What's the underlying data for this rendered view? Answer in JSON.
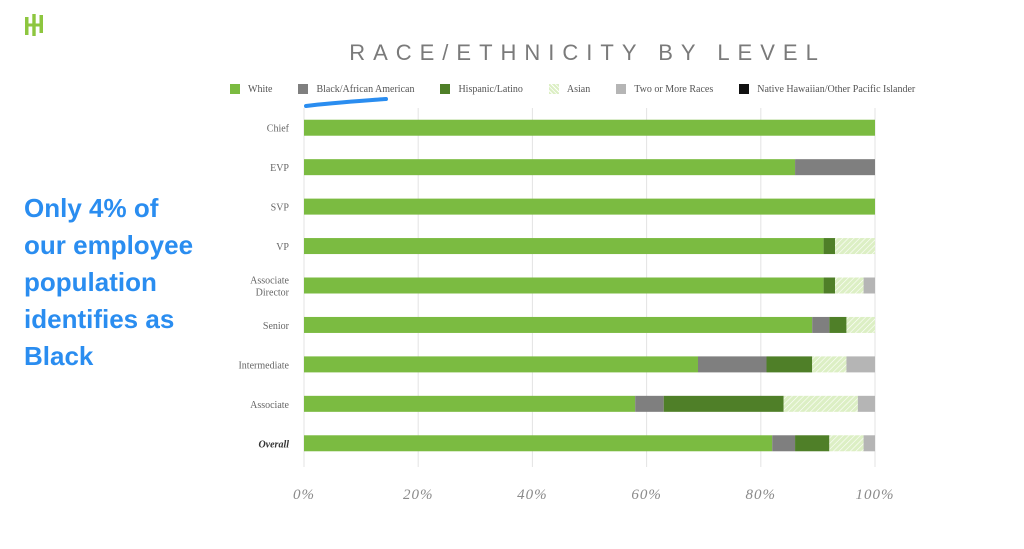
{
  "logo": {
    "icon": "hh-logo-icon",
    "color": "#8dc63f"
  },
  "annotation": {
    "lines": [
      "Only 4% of",
      "our employee",
      "population",
      "identifies as",
      "Black"
    ],
    "color": "#2a8df0"
  },
  "underline_color": "#2a8df0",
  "chart_data": {
    "type": "bar",
    "orientation": "horizontal",
    "stacked": true,
    "title": "RACE/ETHNICITY BY LEVEL",
    "xlabel": "",
    "ylabel": "",
    "xlim": [
      0,
      100
    ],
    "xticks": [
      0,
      20,
      40,
      60,
      80,
      100
    ],
    "xtick_labels": [
      "0%",
      "20%",
      "40%",
      "60%",
      "80%",
      "100%"
    ],
    "grid": true,
    "legend_position": "top",
    "categories": [
      [
        "Chief"
      ],
      [
        "EVP"
      ],
      [
        "SVP"
      ],
      [
        "VP"
      ],
      [
        "Associate",
        "Director"
      ],
      [
        "Senior"
      ],
      [
        "Intermediate"
      ],
      [
        "Associate"
      ],
      [
        "Overall"
      ]
    ],
    "emphasized_category": "Overall",
    "series": [
      {
        "name": "White",
        "color": "#7bbb41",
        "pattern": "solid",
        "values": [
          100,
          86,
          100,
          91,
          91,
          89,
          69,
          58,
          82
        ]
      },
      {
        "name": "Black/African American",
        "color": "#7f7f7f",
        "pattern": "solid",
        "values": [
          0,
          14,
          0,
          0,
          0,
          3,
          12,
          5,
          4
        ]
      },
      {
        "name": "Hispanic/Latino",
        "color": "#4f7f28",
        "pattern": "solid",
        "values": [
          0,
          0,
          0,
          2,
          2,
          3,
          8,
          21,
          6
        ]
      },
      {
        "name": "Asian",
        "color": "#dcefc4",
        "pattern": "hatch",
        "values": [
          0,
          0,
          0,
          7,
          5,
          5,
          6,
          13,
          6
        ]
      },
      {
        "name": "Two or More Races",
        "color": "#b5b5b5",
        "pattern": "solid",
        "values": [
          0,
          0,
          0,
          0,
          2,
          0,
          5,
          3,
          2
        ]
      },
      {
        "name": "Native Hawaiian/Other Pacific Islander",
        "color": "#111111",
        "pattern": "solid",
        "values": [
          0,
          0,
          0,
          0,
          0,
          0,
          0,
          0,
          0
        ]
      }
    ]
  }
}
